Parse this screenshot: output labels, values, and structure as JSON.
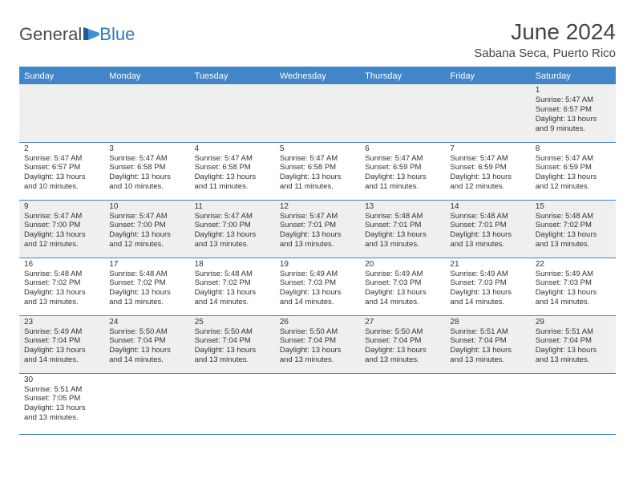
{
  "brand": {
    "general": "General",
    "blue": "Blue"
  },
  "title": "June 2024",
  "location": "Sabana Seca, Puerto Rico",
  "colors": {
    "header_bg": "#4086c9",
    "header_text": "#ffffff",
    "rule": "#4086c9",
    "odd_row_bg": "#efefef",
    "even_row_bg": "#ffffff",
    "text": "#333333",
    "logo_general": "#4a4a4a",
    "logo_blue": "#2f78c4"
  },
  "weekdays": [
    "Sunday",
    "Monday",
    "Tuesday",
    "Wednesday",
    "Thursday",
    "Friday",
    "Saturday"
  ],
  "weeks": [
    {
      "parity": "odd",
      "days": [
        null,
        null,
        null,
        null,
        null,
        null,
        {
          "n": "1",
          "sr": "Sunrise: 5:47 AM",
          "ss": "Sunset: 6:57 PM",
          "d1": "Daylight: 13 hours",
          "d2": "and 9 minutes."
        }
      ]
    },
    {
      "parity": "even",
      "days": [
        {
          "n": "2",
          "sr": "Sunrise: 5:47 AM",
          "ss": "Sunset: 6:57 PM",
          "d1": "Daylight: 13 hours",
          "d2": "and 10 minutes."
        },
        {
          "n": "3",
          "sr": "Sunrise: 5:47 AM",
          "ss": "Sunset: 6:58 PM",
          "d1": "Daylight: 13 hours",
          "d2": "and 10 minutes."
        },
        {
          "n": "4",
          "sr": "Sunrise: 5:47 AM",
          "ss": "Sunset: 6:58 PM",
          "d1": "Daylight: 13 hours",
          "d2": "and 11 minutes."
        },
        {
          "n": "5",
          "sr": "Sunrise: 5:47 AM",
          "ss": "Sunset: 6:58 PM",
          "d1": "Daylight: 13 hours",
          "d2": "and 11 minutes."
        },
        {
          "n": "6",
          "sr": "Sunrise: 5:47 AM",
          "ss": "Sunset: 6:59 PM",
          "d1": "Daylight: 13 hours",
          "d2": "and 11 minutes."
        },
        {
          "n": "7",
          "sr": "Sunrise: 5:47 AM",
          "ss": "Sunset: 6:59 PM",
          "d1": "Daylight: 13 hours",
          "d2": "and 12 minutes."
        },
        {
          "n": "8",
          "sr": "Sunrise: 5:47 AM",
          "ss": "Sunset: 6:59 PM",
          "d1": "Daylight: 13 hours",
          "d2": "and 12 minutes."
        }
      ]
    },
    {
      "parity": "odd",
      "days": [
        {
          "n": "9",
          "sr": "Sunrise: 5:47 AM",
          "ss": "Sunset: 7:00 PM",
          "d1": "Daylight: 13 hours",
          "d2": "and 12 minutes."
        },
        {
          "n": "10",
          "sr": "Sunrise: 5:47 AM",
          "ss": "Sunset: 7:00 PM",
          "d1": "Daylight: 13 hours",
          "d2": "and 12 minutes."
        },
        {
          "n": "11",
          "sr": "Sunrise: 5:47 AM",
          "ss": "Sunset: 7:00 PM",
          "d1": "Daylight: 13 hours",
          "d2": "and 13 minutes."
        },
        {
          "n": "12",
          "sr": "Sunrise: 5:47 AM",
          "ss": "Sunset: 7:01 PM",
          "d1": "Daylight: 13 hours",
          "d2": "and 13 minutes."
        },
        {
          "n": "13",
          "sr": "Sunrise: 5:48 AM",
          "ss": "Sunset: 7:01 PM",
          "d1": "Daylight: 13 hours",
          "d2": "and 13 minutes."
        },
        {
          "n": "14",
          "sr": "Sunrise: 5:48 AM",
          "ss": "Sunset: 7:01 PM",
          "d1": "Daylight: 13 hours",
          "d2": "and 13 minutes."
        },
        {
          "n": "15",
          "sr": "Sunrise: 5:48 AM",
          "ss": "Sunset: 7:02 PM",
          "d1": "Daylight: 13 hours",
          "d2": "and 13 minutes."
        }
      ]
    },
    {
      "parity": "even",
      "days": [
        {
          "n": "16",
          "sr": "Sunrise: 5:48 AM",
          "ss": "Sunset: 7:02 PM",
          "d1": "Daylight: 13 hours",
          "d2": "and 13 minutes."
        },
        {
          "n": "17",
          "sr": "Sunrise: 5:48 AM",
          "ss": "Sunset: 7:02 PM",
          "d1": "Daylight: 13 hours",
          "d2": "and 13 minutes."
        },
        {
          "n": "18",
          "sr": "Sunrise: 5:48 AM",
          "ss": "Sunset: 7:02 PM",
          "d1": "Daylight: 13 hours",
          "d2": "and 14 minutes."
        },
        {
          "n": "19",
          "sr": "Sunrise: 5:49 AM",
          "ss": "Sunset: 7:03 PM",
          "d1": "Daylight: 13 hours",
          "d2": "and 14 minutes."
        },
        {
          "n": "20",
          "sr": "Sunrise: 5:49 AM",
          "ss": "Sunset: 7:03 PM",
          "d1": "Daylight: 13 hours",
          "d2": "and 14 minutes."
        },
        {
          "n": "21",
          "sr": "Sunrise: 5:49 AM",
          "ss": "Sunset: 7:03 PM",
          "d1": "Daylight: 13 hours",
          "d2": "and 14 minutes."
        },
        {
          "n": "22",
          "sr": "Sunrise: 5:49 AM",
          "ss": "Sunset: 7:03 PM",
          "d1": "Daylight: 13 hours",
          "d2": "and 14 minutes."
        }
      ]
    },
    {
      "parity": "odd",
      "days": [
        {
          "n": "23",
          "sr": "Sunrise: 5:49 AM",
          "ss": "Sunset: 7:04 PM",
          "d1": "Daylight: 13 hours",
          "d2": "and 14 minutes."
        },
        {
          "n": "24",
          "sr": "Sunrise: 5:50 AM",
          "ss": "Sunset: 7:04 PM",
          "d1": "Daylight: 13 hours",
          "d2": "and 14 minutes."
        },
        {
          "n": "25",
          "sr": "Sunrise: 5:50 AM",
          "ss": "Sunset: 7:04 PM",
          "d1": "Daylight: 13 hours",
          "d2": "and 13 minutes."
        },
        {
          "n": "26",
          "sr": "Sunrise: 5:50 AM",
          "ss": "Sunset: 7:04 PM",
          "d1": "Daylight: 13 hours",
          "d2": "and 13 minutes."
        },
        {
          "n": "27",
          "sr": "Sunrise: 5:50 AM",
          "ss": "Sunset: 7:04 PM",
          "d1": "Daylight: 13 hours",
          "d2": "and 13 minutes."
        },
        {
          "n": "28",
          "sr": "Sunrise: 5:51 AM",
          "ss": "Sunset: 7:04 PM",
          "d1": "Daylight: 13 hours",
          "d2": "and 13 minutes."
        },
        {
          "n": "29",
          "sr": "Sunrise: 5:51 AM",
          "ss": "Sunset: 7:04 PM",
          "d1": "Daylight: 13 hours",
          "d2": "and 13 minutes."
        }
      ]
    },
    {
      "parity": "even",
      "days": [
        {
          "n": "30",
          "sr": "Sunrise: 5:51 AM",
          "ss": "Sunset: 7:05 PM",
          "d1": "Daylight: 13 hours",
          "d2": "and 13 minutes."
        },
        null,
        null,
        null,
        null,
        null,
        null
      ]
    }
  ]
}
